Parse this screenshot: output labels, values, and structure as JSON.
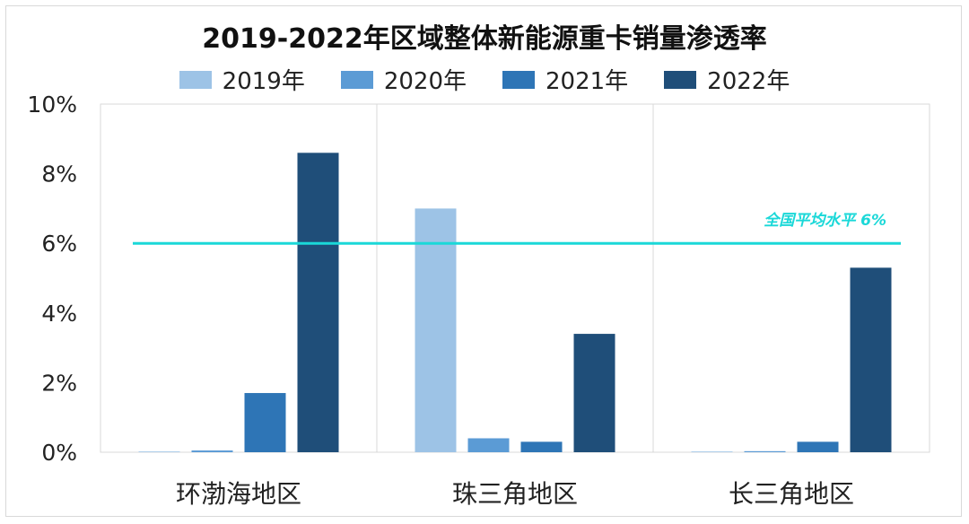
{
  "chart_data": {
    "type": "bar",
    "title": "2019-2022年区域整体新能源重卡销量渗透率",
    "categories": [
      "环渤海地区",
      "珠三角地区",
      "长三角地区"
    ],
    "series": [
      {
        "name": "2019年",
        "color": "#9dc3e6",
        "values": [
          0.0,
          7.0,
          0.0
        ]
      },
      {
        "name": "2020年",
        "color": "#5b9bd5",
        "values": [
          0.05,
          0.4,
          0.03
        ]
      },
      {
        "name": "2021年",
        "color": "#2e75b6",
        "values": [
          1.7,
          0.3,
          0.3
        ]
      },
      {
        "name": "2022年",
        "color": "#1f4e79",
        "values": [
          8.6,
          3.4,
          5.3
        ]
      }
    ],
    "ylim": [
      0,
      10
    ],
    "yticks": [
      "0%",
      "2%",
      "4%",
      "6%",
      "8%",
      "10%"
    ],
    "ytick_values": [
      0,
      2,
      4,
      6,
      8,
      10
    ],
    "reference_line": {
      "value": 6,
      "label": "全国平均水平   6%",
      "color": "#1ad8d8"
    },
    "legend_position": "top-center",
    "grid": "vertical category separators"
  }
}
